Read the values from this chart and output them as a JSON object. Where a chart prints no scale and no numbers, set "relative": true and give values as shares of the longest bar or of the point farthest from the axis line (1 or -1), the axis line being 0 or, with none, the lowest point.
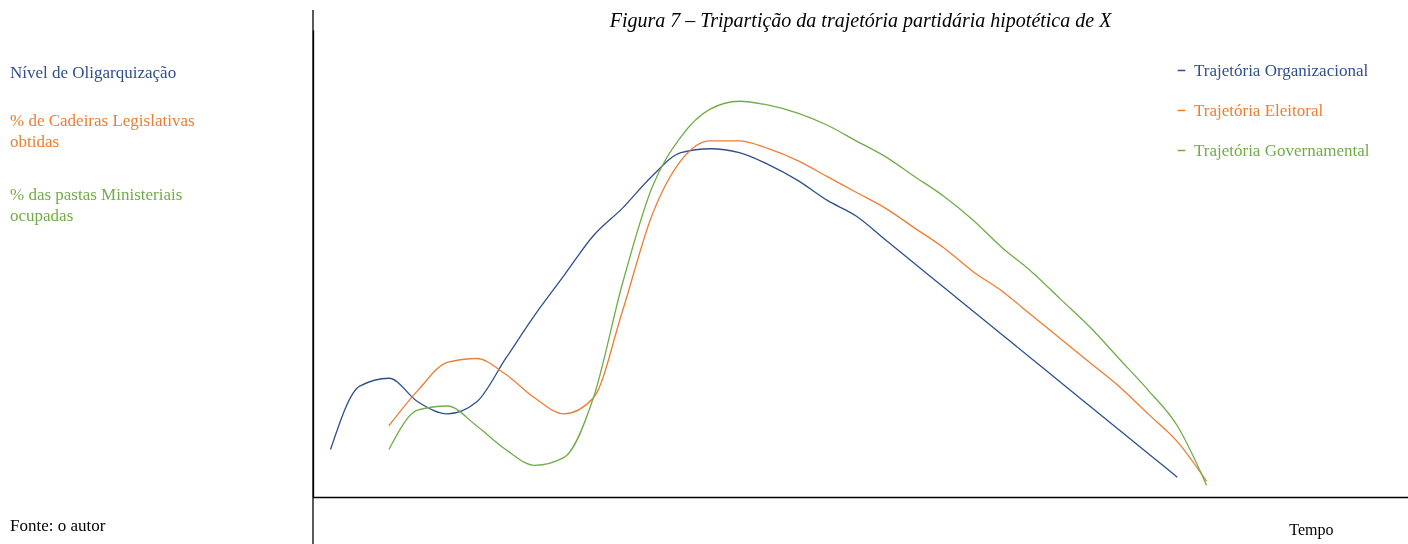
{
  "chart_data": {
    "type": "line",
    "title": "Figura 7 – Tripartição da trajetória partidária hipotética de X",
    "xlabel": "Tempo",
    "relative": true,
    "tick_labels": false,
    "grid": false,
    "legend": "top right",
    "marker": "none",
    "line_style": "solid",
    "categories": [
      null,
      null,
      null,
      null,
      null,
      null,
      null,
      null,
      null,
      null,
      null,
      null,
      null,
      null,
      null,
      null,
      null,
      null,
      null,
      null,
      null,
      null,
      null,
      null,
      null,
      null,
      null,
      null,
      null,
      null,
      null
    ],
    "annotations": [
      "Nível de Oligarquização",
      "% de Cadeiras Legislativas obtidas",
      "% das pastas Ministeriais ocupadas",
      "Fonte: o autor"
    ],
    "series": [
      {
        "name": "Trajetória Organizacional",
        "color": "#2f4f8f",
        "values": [
          0.12,
          0.28,
          0.3,
          0.24,
          0.21,
          0.24,
          0.35,
          0.46,
          0.56,
          0.66,
          0.73,
          0.81,
          0.87,
          0.88,
          0.87,
          0.84,
          0.8,
          0.75,
          0.71,
          0.65,
          0.59,
          0.53,
          0.47,
          0.41,
          0.35,
          0.29,
          0.23,
          0.17,
          0.11,
          0.05,
          null
        ]
      },
      {
        "name": "Trajetória Eleitoral",
        "color": "#ed7d31",
        "values": [
          null,
          null,
          0.18,
          0.27,
          0.34,
          0.35,
          0.31,
          0.25,
          0.21,
          0.25,
          0.47,
          0.71,
          0.85,
          0.9,
          0.9,
          0.88,
          0.85,
          0.81,
          0.77,
          0.73,
          0.68,
          0.63,
          0.57,
          0.52,
          0.46,
          0.4,
          0.34,
          0.28,
          0.21,
          0.14,
          0.04
        ]
      },
      {
        "name": "Trajetória Governamental",
        "color": "#70ad47",
        "values": [
          null,
          null,
          0.12,
          0.22,
          0.23,
          0.18,
          0.12,
          0.08,
          0.1,
          0.25,
          0.54,
          0.78,
          0.91,
          0.98,
          1.0,
          0.99,
          0.97,
          0.94,
          0.9,
          0.86,
          0.81,
          0.76,
          0.7,
          0.63,
          0.57,
          0.5,
          0.43,
          0.35,
          0.27,
          0.18,
          0.03
        ]
      }
    ]
  }
}
